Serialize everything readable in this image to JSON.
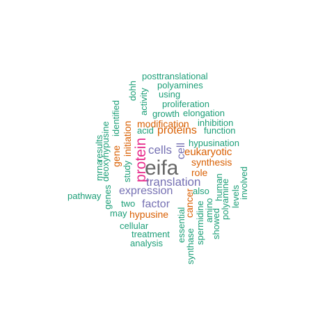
{
  "palette": {
    "teal": "#1b9e77",
    "orange": "#d95f02",
    "purple": "#7570b3",
    "pink": "#e7298a",
    "gray": "#666666"
  },
  "words": [
    {
      "text": "eifa",
      "color": "gray"
    },
    {
      "text": "protein",
      "color": "pink"
    },
    {
      "text": "translation",
      "color": "purple"
    },
    {
      "text": "expression",
      "color": "purple"
    },
    {
      "text": "cells",
      "color": "purple"
    },
    {
      "text": "factor",
      "color": "purple"
    },
    {
      "text": "cell",
      "color": "purple"
    },
    {
      "text": "proteins",
      "color": "orange"
    },
    {
      "text": "eukaryotic",
      "color": "orange"
    },
    {
      "text": "hypusine",
      "color": "orange"
    },
    {
      "text": "initiation",
      "color": "orange"
    },
    {
      "text": "modification",
      "color": "orange"
    },
    {
      "text": "synthesis",
      "color": "orange"
    },
    {
      "text": "role",
      "color": "orange"
    },
    {
      "text": "cancer",
      "color": "orange"
    },
    {
      "text": "gene",
      "color": "orange"
    },
    {
      "text": "posttranslational",
      "color": "teal"
    },
    {
      "text": "polyamines",
      "color": "teal"
    },
    {
      "text": "using",
      "color": "teal"
    },
    {
      "text": "proliferation",
      "color": "teal"
    },
    {
      "text": "growth",
      "color": "teal"
    },
    {
      "text": "elongation",
      "color": "teal"
    },
    {
      "text": "inhibition",
      "color": "teal"
    },
    {
      "text": "function",
      "color": "teal"
    },
    {
      "text": "acid",
      "color": "teal"
    },
    {
      "text": "hypusination",
      "color": "teal"
    },
    {
      "text": "dohh",
      "color": "teal"
    },
    {
      "text": "activity",
      "color": "teal"
    },
    {
      "text": "identified",
      "color": "teal"
    },
    {
      "text": "deoxyhypusine",
      "color": "teal"
    },
    {
      "text": "results",
      "color": "teal"
    },
    {
      "text": "mrna",
      "color": "teal"
    },
    {
      "text": "genes",
      "color": "teal"
    },
    {
      "text": "study",
      "color": "teal"
    },
    {
      "text": "pathway",
      "color": "teal"
    },
    {
      "text": "two",
      "color": "teal"
    },
    {
      "text": "may",
      "color": "teal"
    },
    {
      "text": "cellular",
      "color": "teal"
    },
    {
      "text": "treatment",
      "color": "teal"
    },
    {
      "text": "analysis",
      "color": "teal"
    },
    {
      "text": "also",
      "color": "teal"
    },
    {
      "text": "human",
      "color": "teal"
    },
    {
      "text": "polyamine",
      "color": "teal"
    },
    {
      "text": "levels",
      "color": "teal"
    },
    {
      "text": "involved",
      "color": "teal"
    },
    {
      "text": "essential",
      "color": "teal"
    },
    {
      "text": "synthase",
      "color": "teal"
    },
    {
      "text": "spermidine",
      "color": "teal"
    },
    {
      "text": "amino",
      "color": "teal"
    },
    {
      "text": "showed",
      "color": "teal"
    }
  ]
}
